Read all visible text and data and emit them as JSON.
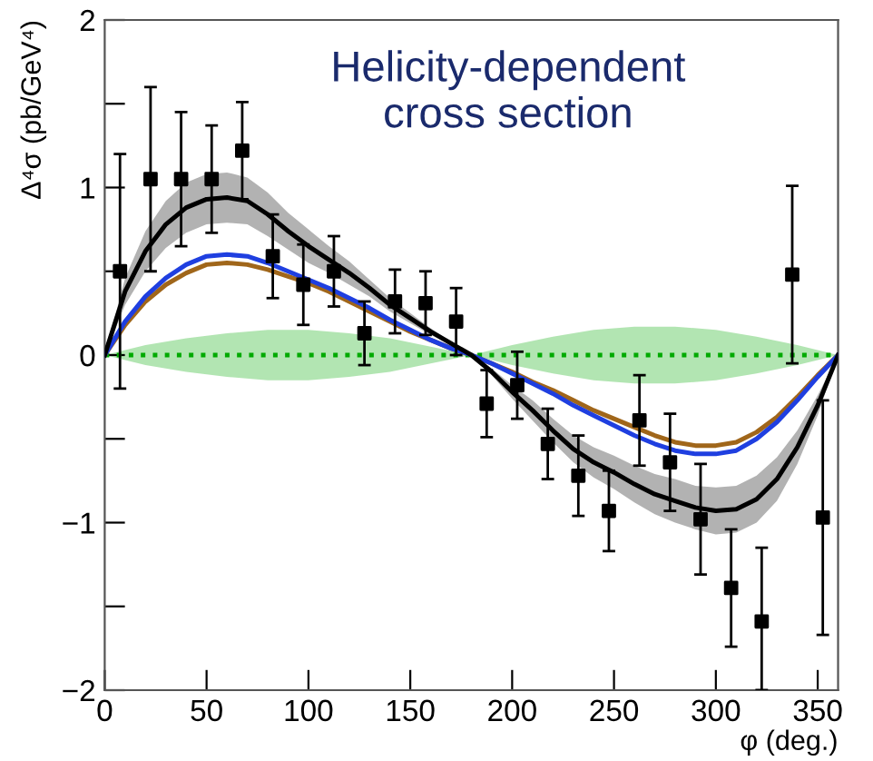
{
  "chart_data": {
    "type": "line",
    "title": "Helicity-dependent\ncross section",
    "xlabel": "φ (deg.)",
    "ylabel": "Δ⁴σ (pb/GeV⁴)",
    "xlim": [
      0,
      360
    ],
    "ylim": [
      -2,
      2
    ],
    "xticks": [
      0,
      50,
      100,
      150,
      200,
      250,
      300,
      350
    ],
    "yticks": [
      -2,
      {
        "value": -1.5,
        "label": null
      },
      -1,
      {
        "value": -0.5,
        "label": null
      },
      0,
      {
        "value": 0.5,
        "label": null
      },
      1,
      {
        "value": 1.5,
        "label": null
      },
      2
    ],
    "grid": false,
    "legend": false,
    "series": [
      {
        "color": "#00aa00",
        "line_style": "dotted",
        "x": [
          0,
          20,
          40,
          60,
          80,
          100,
          120,
          140,
          160,
          180,
          200,
          220,
          240,
          260,
          280,
          300,
          320,
          340,
          360
        ],
        "values": [
          0,
          0,
          0,
          0,
          0,
          0,
          0,
          0,
          0,
          0,
          0,
          0,
          0,
          0,
          0,
          0,
          0,
          0,
          0
        ],
        "lower": [
          0,
          -0.06,
          -0.1,
          -0.13,
          -0.15,
          -0.15,
          -0.13,
          -0.1,
          -0.05,
          0,
          -0.06,
          -0.11,
          -0.15,
          -0.17,
          -0.17,
          -0.15,
          -0.11,
          -0.06,
          0
        ],
        "upper": [
          0,
          0.06,
          0.1,
          0.13,
          0.15,
          0.15,
          0.13,
          0.1,
          0.05,
          0,
          0.06,
          0.11,
          0.15,
          0.17,
          0.17,
          0.15,
          0.11,
          0.06,
          0
        ]
      },
      {
        "color": "#a0661a",
        "x": [
          0,
          10,
          20,
          30,
          40,
          50,
          60,
          70,
          80,
          90,
          100,
          110,
          120,
          130,
          140,
          150,
          160,
          170,
          180,
          190,
          200,
          210,
          220,
          230,
          240,
          250,
          260,
          270,
          280,
          290,
          300,
          310,
          320,
          330,
          340,
          350,
          360
        ],
        "values": [
          0,
          0.18,
          0.32,
          0.42,
          0.49,
          0.54,
          0.55,
          0.54,
          0.51,
          0.47,
          0.43,
          0.38,
          0.32,
          0.26,
          0.2,
          0.14,
          0.09,
          0.04,
          0,
          -0.05,
          -0.1,
          -0.16,
          -0.21,
          -0.27,
          -0.33,
          -0.38,
          -0.43,
          -0.48,
          -0.52,
          -0.54,
          -0.54,
          -0.52,
          -0.46,
          -0.37,
          -0.25,
          -0.12,
          0
        ]
      },
      {
        "color": "#1f3fe0",
        "x": [
          0,
          10,
          20,
          30,
          40,
          50,
          60,
          70,
          80,
          90,
          100,
          110,
          120,
          130,
          140,
          150,
          160,
          170,
          180,
          190,
          200,
          210,
          220,
          230,
          240,
          250,
          260,
          270,
          280,
          290,
          300,
          310,
          320,
          330,
          340,
          350,
          360
        ],
        "values": [
          0,
          0.2,
          0.35,
          0.46,
          0.54,
          0.59,
          0.6,
          0.59,
          0.55,
          0.5,
          0.45,
          0.4,
          0.34,
          0.28,
          0.21,
          0.15,
          0.09,
          0.04,
          0,
          -0.05,
          -0.11,
          -0.17,
          -0.23,
          -0.3,
          -0.36,
          -0.42,
          -0.48,
          -0.53,
          -0.57,
          -0.59,
          -0.59,
          -0.57,
          -0.5,
          -0.4,
          -0.27,
          -0.13,
          0
        ]
      },
      {
        "color": "#000000",
        "x": [
          0,
          10,
          20,
          30,
          40,
          50,
          60,
          70,
          80,
          90,
          100,
          110,
          120,
          130,
          140,
          150,
          160,
          170,
          180,
          190,
          200,
          210,
          220,
          230,
          240,
          250,
          260,
          270,
          280,
          290,
          300,
          310,
          320,
          330,
          340,
          350,
          360
        ],
        "values": [
          0,
          0.38,
          0.62,
          0.78,
          0.88,
          0.93,
          0.94,
          0.92,
          0.84,
          0.74,
          0.65,
          0.57,
          0.49,
          0.4,
          0.3,
          0.22,
          0.14,
          0.07,
          0,
          -0.1,
          -0.22,
          -0.33,
          -0.45,
          -0.56,
          -0.64,
          -0.7,
          -0.77,
          -0.83,
          -0.87,
          -0.91,
          -0.93,
          -0.92,
          -0.86,
          -0.74,
          -0.55,
          -0.3,
          0
        ],
        "lower": [
          0,
          0.3,
          0.5,
          0.64,
          0.73,
          0.78,
          0.79,
          0.78,
          0.71,
          0.63,
          0.55,
          0.49,
          0.42,
          0.35,
          0.26,
          0.19,
          0.12,
          0.06,
          0,
          -0.12,
          -0.26,
          -0.39,
          -0.52,
          -0.64,
          -0.73,
          -0.8,
          -0.88,
          -0.95,
          -1.0,
          -1.04,
          -1.07,
          -1.06,
          -1.0,
          -0.87,
          -0.65,
          -0.36,
          0
        ],
        "upper": [
          0,
          0.46,
          0.74,
          0.92,
          1.03,
          1.08,
          1.09,
          1.06,
          0.97,
          0.85,
          0.75,
          0.65,
          0.56,
          0.45,
          0.34,
          0.25,
          0.16,
          0.08,
          0,
          -0.08,
          -0.18,
          -0.27,
          -0.38,
          -0.48,
          -0.55,
          -0.6,
          -0.66,
          -0.71,
          -0.74,
          -0.78,
          -0.79,
          -0.78,
          -0.72,
          -0.61,
          -0.45,
          -0.24,
          0
        ]
      },
      {
        "type": "scatter",
        "color": "#000000",
        "marker": "square",
        "x": [
          7.5,
          22.5,
          37.5,
          52.5,
          67.5,
          82.5,
          97.5,
          112.5,
          127.5,
          142.5,
          157.5,
          172.5,
          187.5,
          202.5,
          217.5,
          232.5,
          247.5,
          262.5,
          277.5,
          292.5,
          307.5,
          322.5,
          337.5,
          352.5
        ],
        "values": [
          0.5,
          1.05,
          1.05,
          1.05,
          1.22,
          0.59,
          0.42,
          0.5,
          0.13,
          0.32,
          0.31,
          0.2,
          -0.29,
          -0.18,
          -0.53,
          -0.72,
          -0.93,
          -0.39,
          -0.64,
          -0.98,
          -1.39,
          -1.59,
          0.48,
          -0.97
        ],
        "errors": [
          0.7,
          0.55,
          0.4,
          0.32,
          0.29,
          0.25,
          0.24,
          0.21,
          0.19,
          0.19,
          0.19,
          0.2,
          0.2,
          0.2,
          0.21,
          0.24,
          0.24,
          0.27,
          0.29,
          0.33,
          0.35,
          [
            -2,
            -1.15
          ],
          0.53,
          0.7
        ]
      }
    ]
  }
}
